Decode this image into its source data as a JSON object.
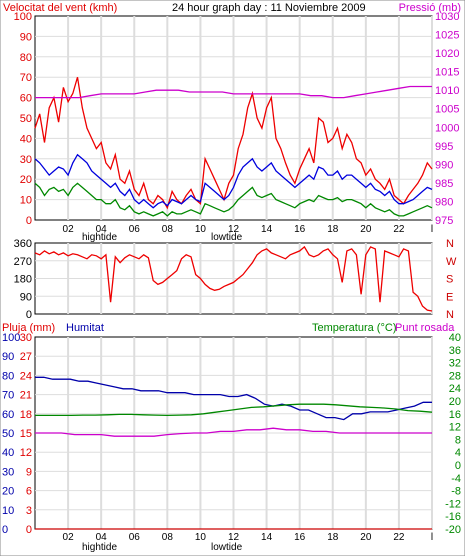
{
  "charts": [
    {
      "id": "wind_pressure",
      "type": "line",
      "title": "24 hour graph day : 11 Noviembre 2009",
      "left_label": "Velocitat del vent (kmh)",
      "right_label": "Pressió (mb)",
      "y_left_ticks": [
        "0",
        "10",
        "20",
        "30",
        "40",
        "50",
        "60",
        "70",
        "80",
        "90",
        "100"
      ],
      "y_left_range": [
        0,
        100
      ],
      "y_right_ticks": [
        "975",
        "980",
        "985",
        "990",
        "995",
        "1000",
        "1005",
        "1010",
        "1015",
        "1020",
        "1025",
        "1030"
      ],
      "y_right_range": [
        975,
        1030
      ],
      "x_range_hours": [
        0,
        24
      ],
      "x_tick_labels": [
        "02",
        "04",
        "06",
        "08",
        "10",
        "12",
        "14",
        "16",
        "18",
        "20",
        "22",
        "l"
      ],
      "tide_labels": [
        "hightide",
        "lowtide"
      ],
      "grid": true,
      "series": [
        {
          "color": "#ee0000",
          "axis": "left",
          "values": [
            45,
            52,
            38,
            55,
            60,
            48,
            65,
            58,
            62,
            70,
            55,
            45,
            40,
            35,
            38,
            28,
            25,
            32,
            20,
            18,
            24,
            15,
            12,
            18,
            10,
            8,
            12,
            10,
            6,
            14,
            10,
            8,
            12,
            15,
            10,
            8,
            30,
            25,
            20,
            15,
            10,
            18,
            22,
            35,
            42,
            55,
            62,
            50,
            45,
            55,
            60,
            40,
            35,
            28,
            22,
            18,
            25,
            30,
            35,
            28,
            50,
            48,
            38,
            40,
            45,
            35,
            42,
            38,
            30,
            28,
            22,
            25,
            20,
            18,
            15,
            20,
            12,
            10,
            8,
            12,
            15,
            18,
            22,
            28,
            25
          ]
        },
        {
          "color": "#0000dd",
          "axis": "left",
          "values": [
            30,
            28,
            25,
            22,
            24,
            26,
            25,
            22,
            28,
            32,
            30,
            28,
            24,
            22,
            20,
            18,
            16,
            18,
            14,
            12,
            15,
            10,
            8,
            10,
            8,
            6,
            8,
            9,
            7,
            10,
            9,
            8,
            10,
            12,
            10,
            9,
            18,
            16,
            14,
            12,
            10,
            12,
            16,
            22,
            26,
            28,
            30,
            26,
            24,
            26,
            28,
            24,
            22,
            20,
            18,
            16,
            18,
            20,
            22,
            20,
            26,
            25,
            22,
            22,
            24,
            20,
            22,
            22,
            20,
            18,
            16,
            18,
            15,
            14,
            12,
            14,
            10,
            8,
            8,
            9,
            10,
            12,
            14,
            16,
            15
          ]
        },
        {
          "color": "#008800",
          "axis": "left",
          "values": [
            18,
            16,
            12,
            15,
            16,
            14,
            15,
            12,
            16,
            18,
            16,
            14,
            12,
            10,
            10,
            8,
            8,
            10,
            6,
            5,
            7,
            4,
            3,
            4,
            3,
            2,
            3,
            4,
            2,
            4,
            3,
            3,
            4,
            5,
            4,
            3,
            8,
            7,
            6,
            5,
            4,
            5,
            7,
            10,
            12,
            14,
            16,
            12,
            11,
            12,
            13,
            10,
            9,
            8,
            7,
            6,
            8,
            9,
            10,
            9,
            12,
            11,
            10,
            10,
            11,
            9,
            10,
            10,
            9,
            8,
            6,
            8,
            6,
            5,
            4,
            5,
            3,
            2,
            2,
            3,
            4,
            5,
            6,
            7,
            6
          ]
        },
        {
          "color": "#cc00cc",
          "axis": "right",
          "values": [
            1008,
            1008,
            1008,
            1008,
            1008,
            1008.5,
            1009,
            1009,
            1009,
            1009,
            1009.5,
            1010,
            1010,
            1010,
            1009.5,
            1009.5,
            1009.5,
            1009.5,
            1009,
            1009,
            1009,
            1009,
            1009,
            1009,
            1009,
            1008.5,
            1008.5,
            1008,
            1008,
            1008.5,
            1009,
            1009.5,
            1010,
            1010.5,
            1011,
            1011,
            1011
          ]
        }
      ]
    },
    {
      "id": "wind_direction",
      "type": "line",
      "y_left_ticks": [
        "0",
        "90",
        "180",
        "270",
        "360"
      ],
      "y_left_range": [
        0,
        360
      ],
      "y_right_labels": [
        "N",
        "W",
        "S",
        "E",
        "N"
      ],
      "x_range_hours": [
        0,
        24
      ],
      "grid": true,
      "series": [
        {
          "color": "#ee0000",
          "axis": "left",
          "values": [
            310,
            300,
            320,
            305,
            315,
            300,
            310,
            295,
            305,
            300,
            290,
            280,
            300,
            295,
            280,
            300,
            60,
            290,
            260,
            285,
            300,
            290,
            280,
            300,
            285,
            170,
            150,
            160,
            180,
            200,
            220,
            280,
            300,
            290,
            200,
            180,
            150,
            130,
            120,
            125,
            140,
            150,
            160,
            180,
            200,
            230,
            260,
            300,
            320,
            330,
            310,
            300,
            290,
            280,
            300,
            310,
            320,
            340,
            300,
            290,
            300,
            320,
            330,
            300,
            280,
            160,
            320,
            330,
            300,
            100,
            300,
            340,
            330,
            60,
            320,
            310,
            300,
            290,
            330,
            320,
            110,
            90,
            40,
            20,
            15
          ]
        }
      ]
    },
    {
      "id": "rain_humidity_temp",
      "type": "line",
      "left_label_1": "Pluja (mm)",
      "left_label_2": "Humitat",
      "right_label_1": "Temperatura (°C)",
      "right_label_2": "Punt rosada",
      "y_rain_ticks": [
        "0",
        "3",
        "6",
        "9",
        "12",
        "15",
        "18",
        "21",
        "24",
        "27",
        "30"
      ],
      "y_rain_range": [
        0,
        30
      ],
      "y_hum_ticks": [
        "0",
        "10",
        "20",
        "30",
        "40",
        "50",
        "60",
        "70",
        "80",
        "90",
        "100"
      ],
      "y_hum_range": [
        0,
        100
      ],
      "y_temp_ticks": [
        "-20",
        "-16",
        "-12",
        "-8",
        "-4",
        "0",
        "4",
        "8",
        "12",
        "16",
        "20",
        "24",
        "28",
        "32",
        "36",
        "40"
      ],
      "y_temp_range": [
        -20,
        40
      ],
      "x_range_hours": [
        0,
        24
      ],
      "x_tick_labels": [
        "02",
        "04",
        "06",
        "08",
        "10",
        "12",
        "14",
        "16",
        "18",
        "20",
        "22",
        "l"
      ],
      "tide_labels": [
        "hightide",
        "lowtide"
      ],
      "grid": true,
      "series": [
        {
          "color": "#0000aa",
          "axis": "humidity",
          "values": [
            79,
            79,
            78,
            78,
            78,
            77,
            77,
            76,
            75,
            74,
            73,
            73,
            72,
            72,
            72,
            71,
            71,
            71,
            70,
            70,
            70,
            70,
            69,
            69,
            70,
            68,
            65,
            64,
            65,
            64,
            62,
            62,
            60,
            58,
            58,
            57,
            60,
            60,
            61,
            61,
            61,
            62,
            63,
            64,
            66,
            66
          ]
        },
        {
          "color": "#008800",
          "axis": "temperature",
          "values": [
            15.5,
            15.5,
            15.5,
            15.5,
            15.6,
            15.6,
            15.7,
            15.8,
            15.8,
            15.7,
            15.6,
            15.5,
            15.6,
            15.7,
            16,
            16.5,
            17,
            17.5,
            18,
            18.2,
            18.5,
            18.8,
            19,
            19,
            19,
            18.8,
            18.5,
            18.2,
            18,
            17.8,
            17.5,
            17,
            16.8,
            16.5
          ]
        },
        {
          "color": "#cc00cc",
          "axis": "temperature",
          "values": [
            10,
            10,
            10,
            9.5,
            9.5,
            9.5,
            9,
            9,
            9,
            9,
            9.5,
            9.8,
            10,
            10,
            10.5,
            10.5,
            11,
            11,
            11.5,
            11,
            11,
            10.5,
            10.5,
            10,
            10,
            10,
            10,
            10,
            10,
            10,
            10
          ]
        },
        {
          "color": "#cc0000",
          "axis": "rain",
          "values": [
            0,
            0,
            0,
            0,
            0,
            0,
            0,
            0,
            0,
            0,
            0,
            0
          ]
        }
      ]
    }
  ]
}
